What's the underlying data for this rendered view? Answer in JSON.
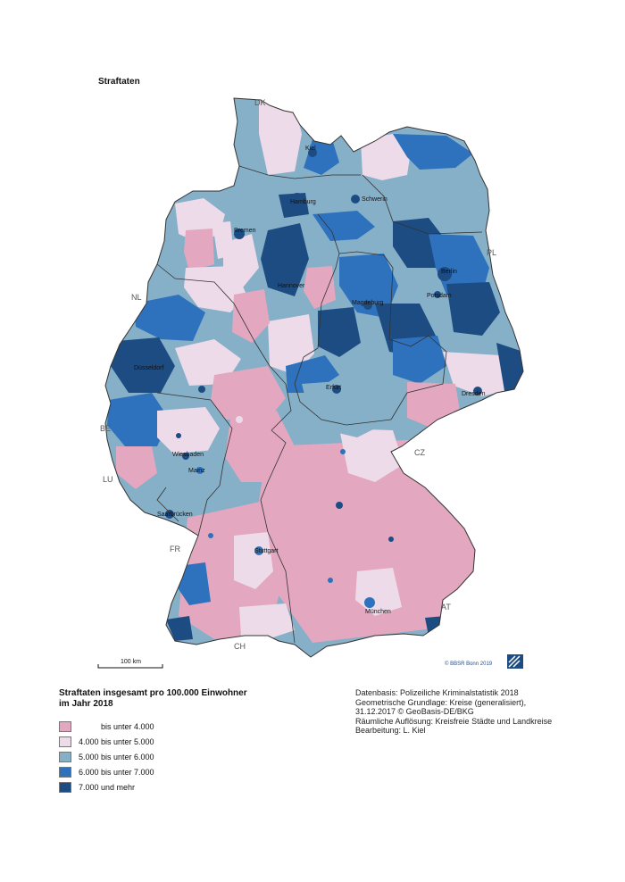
{
  "map_title": "Straftaten",
  "legend": {
    "title_line1": "Straftaten insgesamt pro 100.000 Einwohner",
    "title_line2": "im Jahr 2018",
    "classes": [
      {
        "label": "          bis unter 4.000",
        "color": "#e3a8bf"
      },
      {
        "label": "4.000 bis unter 5.000",
        "color": "#eedbea"
      },
      {
        "label": "5.000 bis unter 6.000",
        "color": "#86afc8"
      },
      {
        "label": "6.000 bis unter 7.000",
        "color": "#2e72be"
      },
      {
        "label": "7.000 und mehr",
        "color": "#1d4c83"
      }
    ]
  },
  "source": {
    "line1": "Datenbasis: Polizeiliche Kriminalstatistik 2018",
    "line2": "Geometrische Grundlage: Kreise (generalisiert),",
    "line3": "31.12.2017 © GeoBasis-DE/BKG",
    "line4": "Räumliche Auflösung: Kreisfreie Städte und Landkreise",
    "line5": "Bearbeitung: L. Kiel"
  },
  "credit": "© BBSR Bonn 2019",
  "scale": {
    "label": "100 km"
  },
  "cities": [
    "Kiel",
    "Hamburg",
    "Schwerin",
    "Bremen",
    "Berlin",
    "Hannover",
    "Potsdam",
    "Magdeburg",
    "Düsseldorf",
    "Erfurt",
    "Dresden",
    "Wiesbaden",
    "Mainz",
    "Saarbrücken",
    "Stuttgart",
    "München"
  ],
  "countries": [
    "DK",
    "PL",
    "NL",
    "BE",
    "LU",
    "CZ",
    "FR",
    "AT",
    "CH"
  ]
}
